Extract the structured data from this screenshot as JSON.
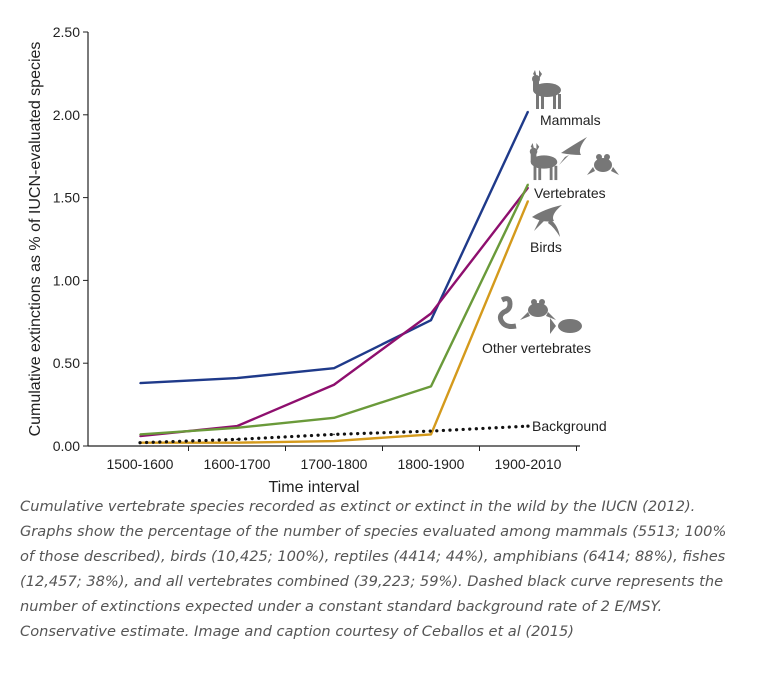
{
  "chart_data": {
    "type": "line",
    "title": "",
    "xlabel": "Time interval",
    "ylabel": "Cumulative extinctions as % of IUCN-evaluated species",
    "categories": [
      "1500-1600",
      "1600-1700",
      "1700-1800",
      "1800-1900",
      "1900-2010"
    ],
    "ylim": [
      0,
      2.5
    ],
    "yticks": [
      "0.00",
      "0.50",
      "1.00",
      "1.50",
      "2.00",
      "2.50"
    ],
    "grid": false,
    "series": [
      {
        "name": "Mammals",
        "color": "#1f3a8a",
        "style": "solid",
        "values": [
          0.38,
          0.41,
          0.47,
          0.76,
          2.02
        ],
        "icon": "deer-icon"
      },
      {
        "name": "Vertebrates",
        "color": "#8e0f6e",
        "style": "solid",
        "values": [
          0.06,
          0.12,
          0.37,
          0.8,
          1.56
        ],
        "icon": "vertebrates-icon"
      },
      {
        "name": "Birds",
        "color": "#6a9a3a",
        "style": "solid",
        "values": [
          0.07,
          0.11,
          0.17,
          0.36,
          1.58
        ],
        "icon": "bird-icon"
      },
      {
        "name": "Other vertebrates",
        "color": "#d49a1c",
        "style": "solid",
        "values": [
          0.02,
          0.02,
          0.03,
          0.07,
          1.48
        ],
        "icon": "other-vertebrates-icon"
      },
      {
        "name": "Background",
        "color": "#111111",
        "style": "dotted",
        "values": [
          0.02,
          0.04,
          0.07,
          0.09,
          0.12
        ],
        "icon": ""
      }
    ]
  },
  "caption": "Cumulative vertebrate species recorded as extinct or extinct in the wild by the IUCN (2012). Graphs show the percentage of the number of species evaluated among mammals (5513; 100% of those described), birds (10,425; 100%), reptiles (4414; 44%), amphibians (6414; 88%), fishes (12,457; 38%), and all vertebrates combined (39,223; 59%). Dashed black curve represents the number of extinctions expected under a constant standard background rate of 2 E/MSY. Conservative estimate. Image and caption courtesy of Ceballos et al (2015)"
}
